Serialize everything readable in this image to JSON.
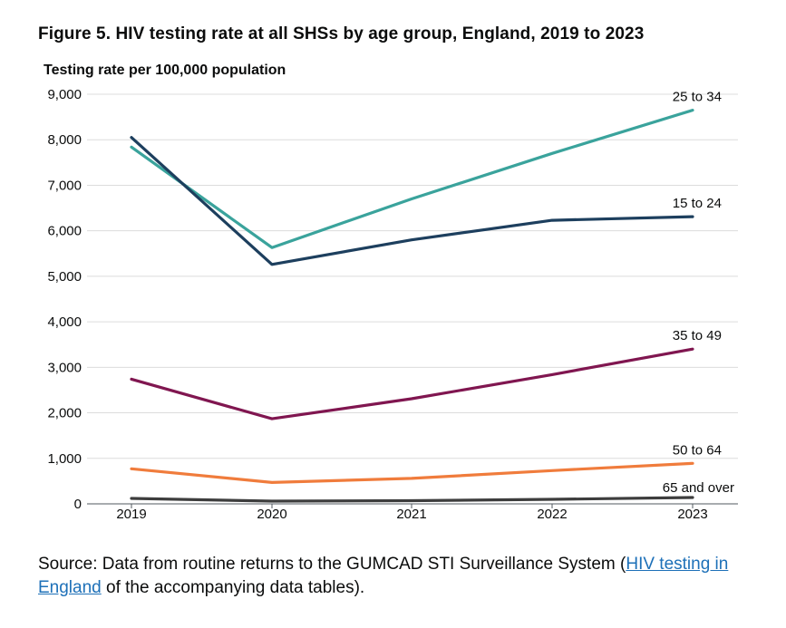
{
  "figure": {
    "title": "Figure 5. HIV testing rate at all SHSs by age group, England, 2019 to 2023"
  },
  "chart_data": {
    "type": "line",
    "title": "Figure 5. HIV testing rate at all SHSs by age group, England, 2019 to 2023",
    "ylabel": "Testing rate per 100,000 population",
    "xlabel": "",
    "x": [
      "2019",
      "2020",
      "2021",
      "2022",
      "2023"
    ],
    "ylim": [
      0,
      9000
    ],
    "yticks": [
      0,
      1000,
      2000,
      3000,
      4000,
      5000,
      6000,
      7000,
      8000,
      9000
    ],
    "ytick_labels": [
      "0",
      "1,000",
      "2,000",
      "3,000",
      "4,000",
      "5,000",
      "6,000",
      "7,000",
      "8,000",
      "9,000"
    ],
    "grid": true,
    "series": [
      {
        "name": "25 to 34",
        "color": "#3aa39c",
        "values": [
          7840,
          5630,
          6700,
          7700,
          8650
        ]
      },
      {
        "name": "15 to 24",
        "color": "#1d3f5e",
        "values": [
          8050,
          5260,
          5800,
          6230,
          6310
        ]
      },
      {
        "name": "35 to 49",
        "color": "#801650",
        "values": [
          2740,
          1870,
          2310,
          2840,
          3400
        ]
      },
      {
        "name": "50 to 64",
        "color": "#f07c3c",
        "values": [
          770,
          470,
          560,
          730,
          890
        ]
      },
      {
        "name": "65 and over",
        "color": "#3d3d3d",
        "values": [
          120,
          60,
          70,
          100,
          140
        ]
      }
    ]
  },
  "source": {
    "prefix": "Source: Data from routine returns to the GUMCAD STI Surveillance System (",
    "link_text": "HIV testing in England",
    "suffix": " of the accompanying data tables)."
  }
}
